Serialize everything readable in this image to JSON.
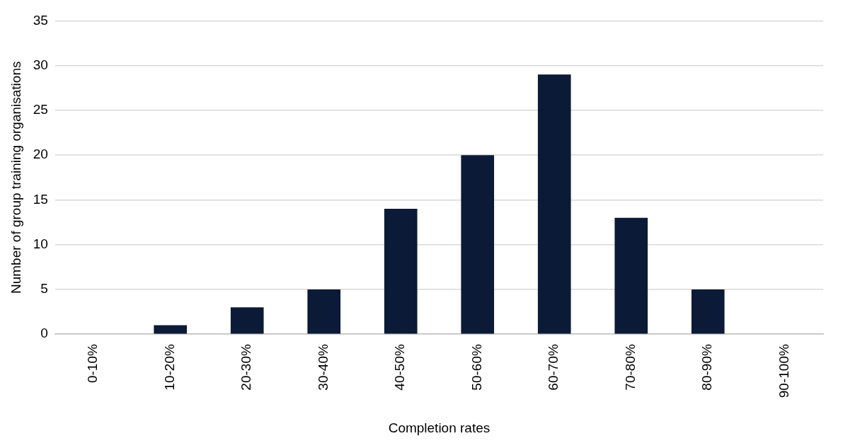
{
  "chart_data": {
    "type": "bar",
    "xlabel": "Completion rates",
    "ylabel": "Number of group training organisations",
    "categories": [
      "0-10%",
      "10-20%",
      "20-30%",
      "30-40%",
      "40-50%",
      "50-60%",
      "60-70%",
      "70-80%",
      "80-90%",
      "90-100%"
    ],
    "values": [
      0,
      1,
      3,
      5,
      14,
      20,
      29,
      13,
      5,
      0
    ],
    "color": "#0b1a36",
    "ylim": [
      0,
      35
    ],
    "yticks": [
      0,
      5,
      10,
      15,
      20,
      25,
      30,
      35
    ],
    "grid": "y",
    "legend": false
  }
}
